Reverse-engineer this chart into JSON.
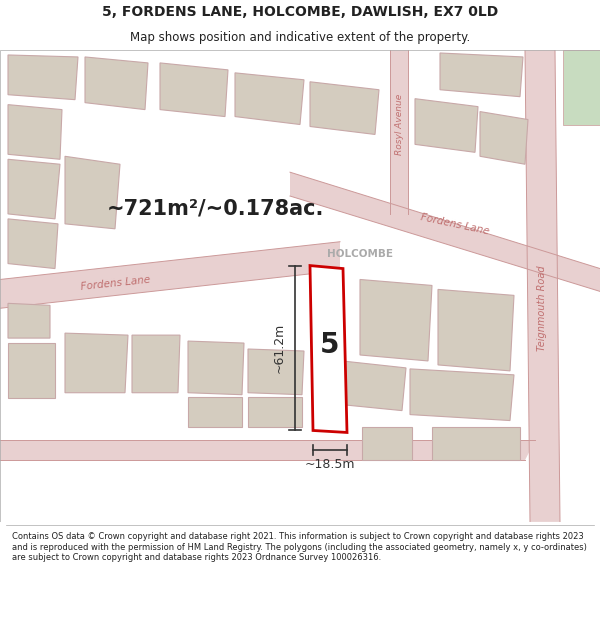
{
  "title": "5, FORDENS LANE, HOLCOMBE, DAWLISH, EX7 0LD",
  "subtitle": "Map shows position and indicative extent of the property.",
  "area_text": "~721m²/~0.178ac.",
  "label_number": "5",
  "dim_height": "~61.2m",
  "dim_width": "~18.5m",
  "label_holcombe": "HOLCOMBE",
  "road_fordens_lower": "Fordens Lane",
  "road_fordens_upper": "Fordens Lane",
  "road_rosyl": "Rosyl Avenue",
  "road_teignmouth": "Teignmouth Road",
  "footer_text": "Contains OS data © Crown copyright and database right 2021. This information is subject to Crown copyright and database rights 2023 and is reproduced with the permission of HM Land Registry. The polygons (including the associated geometry, namely x, y co-ordinates) are subject to Crown copyright and database rights 2023 Ordnance Survey 100026316.",
  "bg_color": "#f0ebe6",
  "road_color": "#e8d0d0",
  "building_fill": "#d4ccbf",
  "building_edge": "#c8a8a8",
  "highlight_fill": "#ffffff",
  "highlight_edge": "#cc0000",
  "road_line_color": "#cc9999",
  "green_area": "#c8dcc0",
  "white_bg": "#ffffff",
  "dim_color": "#333333",
  "text_dark": "#222222",
  "road_text_color": "#c07070"
}
